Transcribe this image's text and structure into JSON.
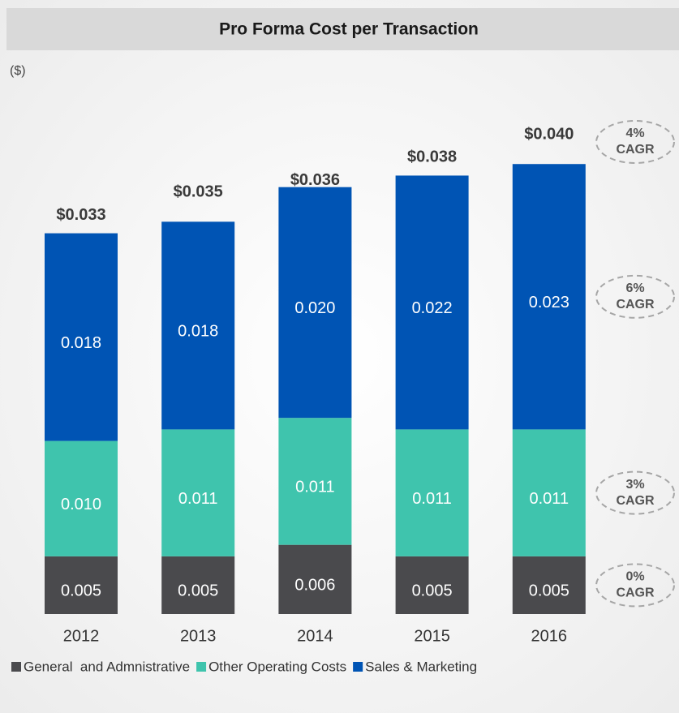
{
  "chart_data": {
    "type": "stacked_bar",
    "title": "Pro Forma Cost per Transaction",
    "unit_label": "($)",
    "categories": [
      "2012",
      "2013",
      "2014",
      "2015",
      "2016"
    ],
    "series": [
      {
        "name": "General  and Admnistrative",
        "color": "#4a4a4d",
        "values": [
          0.005,
          0.005,
          0.006,
          0.005,
          0.005
        ],
        "value_labels": [
          "0.005",
          "0.005",
          "0.006",
          "0.005",
          "0.005"
        ]
      },
      {
        "name": "Other Operating Costs",
        "color": "#3fc4ad",
        "values": [
          0.01,
          0.011,
          0.011,
          0.011,
          0.011
        ],
        "value_labels": [
          "0.010",
          "0.011",
          "0.011",
          "0.011",
          "0.011"
        ]
      },
      {
        "name": "Sales & Marketing",
        "color": "#0054b4",
        "values": [
          0.018,
          0.018,
          0.02,
          0.022,
          0.023
        ],
        "value_labels": [
          "0.018",
          "0.018",
          "0.020",
          "0.022",
          "0.023"
        ]
      }
    ],
    "totals": [
      0.033,
      0.035,
      0.036,
      0.038,
      0.04
    ],
    "total_labels": [
      "$0.033",
      "$0.035",
      "$0.036",
      "$0.038",
      "$0.040"
    ],
    "cagr": {
      "total": {
        "value": 4,
        "label": "4%"
      },
      "series": [
        {
          "value": 0,
          "label": "0%"
        },
        {
          "value": 3,
          "label": "3%"
        },
        {
          "value": 6,
          "label": "6%"
        }
      ],
      "caption": "CAGR"
    }
  }
}
